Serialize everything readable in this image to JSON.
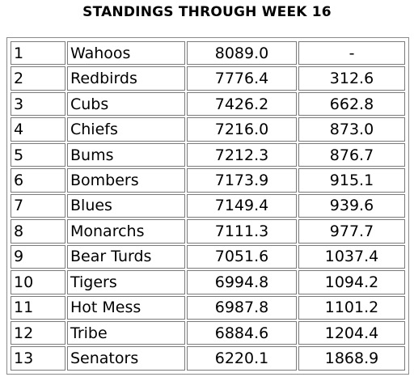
{
  "title": "STANDINGS THROUGH WEEK 16",
  "rows": [
    {
      "rank": "1",
      "team": "Wahoos",
      "points": "8089.0",
      "back": "-"
    },
    {
      "rank": "2",
      "team": "Redbirds",
      "points": "7776.4",
      "back": "312.6"
    },
    {
      "rank": "3",
      "team": "Cubs",
      "points": "7426.2",
      "back": "662.8"
    },
    {
      "rank": "4",
      "team": "Chiefs",
      "points": "7216.0",
      "back": "873.0"
    },
    {
      "rank": "5",
      "team": "Bums",
      "points": "7212.3",
      "back": "876.7"
    },
    {
      "rank": "6",
      "team": "Bombers",
      "points": "7173.9",
      "back": "915.1"
    },
    {
      "rank": "7",
      "team": "Blues",
      "points": "7149.4",
      "back": "939.6"
    },
    {
      "rank": "8",
      "team": "Monarchs",
      "points": "7111.3",
      "back": "977.7"
    },
    {
      "rank": "9",
      "team": "Bear Turds",
      "points": "7051.6",
      "back": "1037.4"
    },
    {
      "rank": "10",
      "team": "Tigers",
      "points": "6994.8",
      "back": "1094.2"
    },
    {
      "rank": "11",
      "team": "Hot Mess",
      "points": "6987.8",
      "back": "1101.2"
    },
    {
      "rank": "12",
      "team": "Tribe",
      "points": "6884.6",
      "back": "1204.4"
    },
    {
      "rank": "13",
      "team": "Senators",
      "points": "6220.1",
      "back": "1868.9"
    }
  ]
}
